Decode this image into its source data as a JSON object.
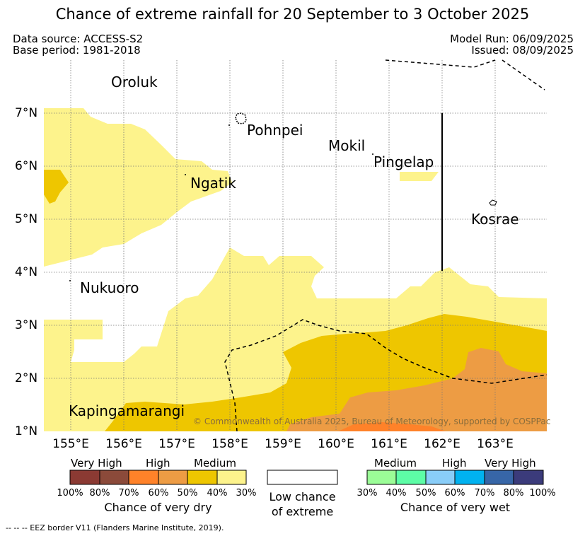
{
  "title": "Chance of extreme rainfall for 20 September to 3 October 2025",
  "header": {
    "data_source": "Data source: ACCESS-S2",
    "base_period": "Base period: 1981-2018",
    "model_run": "Model Run: 06/09/2025",
    "issued": "Issued: 08/09/2025"
  },
  "places": {
    "oroluk": "Oroluk",
    "pohnpei": "Pohnpei",
    "mokil": "Mokil",
    "pingelap": "Pingelap",
    "ngatik": "Ngatik",
    "kosrae": "Kosrae",
    "nukuoro": "Nukuoro",
    "kapingamarangi": "Kapingamarangi"
  },
  "axes": {
    "lat_ticks": [
      "7°N",
      "6°N",
      "5°N",
      "4°N",
      "3°N",
      "2°N",
      "1°N"
    ],
    "lon_ticks": [
      "155°E",
      "156°E",
      "157°E",
      "158°E",
      "159°E",
      "160°E",
      "161°E",
      "162°E",
      "163°E"
    ]
  },
  "copyright": "© Commonwealth of Australia 2025, Bureau of Meteorology, supported by COSPPac",
  "legend": {
    "dry": {
      "headers": [
        "Very High",
        "High",
        "Medium"
      ],
      "colors": [
        "#8b3a33",
        "#8b4a3a",
        "#ff8229",
        "#ed9c44",
        "#eec600",
        "#fdf38c"
      ],
      "pcts": [
        "100%",
        "80%",
        "70%",
        "60%",
        "50%",
        "40%",
        "30%"
      ],
      "caption": "Chance of very dry"
    },
    "low": {
      "caption_line1": "Low chance",
      "caption_line2": "of extreme"
    },
    "wet": {
      "headers": [
        "Medium",
        "High",
        "Very High"
      ],
      "colors": [
        "#9bfd97",
        "#5dfda6",
        "#89cdf8",
        "#00b2f0",
        "#3766a7",
        "#3b3b7b"
      ],
      "pcts": [
        "30%",
        "40%",
        "50%",
        "60%",
        "70%",
        "80%",
        "100%"
      ],
      "caption": "Chance of very wet"
    }
  },
  "footnote": "--  --  -- EEZ border V11 (Flanders Marine Institute, 2019)."
}
